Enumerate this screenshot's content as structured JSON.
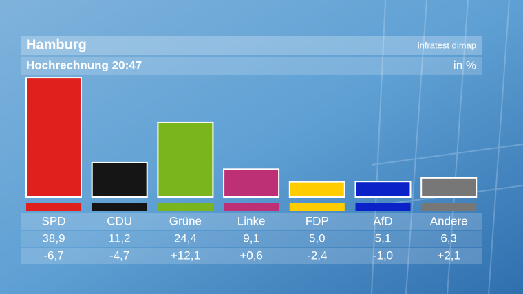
{
  "chart_data": {
    "type": "bar",
    "title": "Hamburg",
    "subtitle": "Hochrechnung 20:47",
    "source": "infratest dimap",
    "unit": "in %",
    "categories": [
      "SPD",
      "CDU",
      "Grüne",
      "Linke",
      "FDP",
      "AfD",
      "Andere"
    ],
    "values": [
      38.9,
      11.2,
      24.4,
      9.1,
      5.0,
      5.1,
      6.3
    ],
    "value_labels": [
      "38,9",
      "11,2",
      "24,4",
      "9,1",
      "5,0",
      "5,1",
      "6,3"
    ],
    "changes": [
      -6.7,
      -4.7,
      12.1,
      0.6,
      -2.4,
      -1.0,
      2.1
    ],
    "change_labels": [
      "-6,7",
      "-4,7",
      "+12,1",
      "+0,6",
      "-2,4",
      "-1,0",
      "+2,1"
    ],
    "colors": [
      "#e0201c",
      "#151515",
      "#7ab51d",
      "#be3075",
      "#ffcc00",
      "#0a22c8",
      "#777777"
    ]
  }
}
